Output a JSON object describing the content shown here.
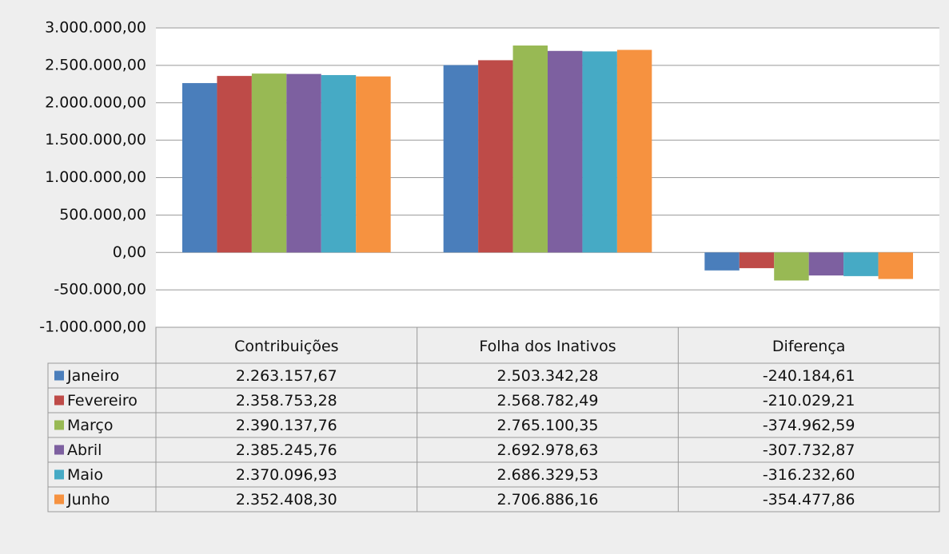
{
  "chart_data": {
    "type": "bar",
    "categories": [
      "Contribuições",
      "Folha dos Inativos",
      "Diferença"
    ],
    "series": [
      {
        "name": "Janeiro",
        "color": "#4a7ebb",
        "values": [
          2263157.67,
          2503342.28,
          -240184.61
        ],
        "value_labels": [
          "2.263.157,67",
          "2.503.342,28",
          "-240.184,61"
        ]
      },
      {
        "name": "Fevereiro",
        "color": "#be4b48",
        "values": [
          2358753.28,
          2568782.49,
          -210029.21
        ],
        "value_labels": [
          "2.358.753,28",
          "2.568.782,49",
          "-210.029,21"
        ]
      },
      {
        "name": "Março",
        "color": "#98b954",
        "values": [
          2390137.76,
          2765100.35,
          -374962.59
        ],
        "value_labels": [
          "2.390.137,76",
          "2.765.100,35",
          "-374.962,59"
        ]
      },
      {
        "name": "Abril",
        "color": "#7d60a0",
        "values": [
          2385245.76,
          2692978.63,
          -307732.87
        ],
        "value_labels": [
          "2.385.245,76",
          "2.692.978,63",
          "-307.732,87"
        ]
      },
      {
        "name": "Maio",
        "color": "#46aac5",
        "values": [
          2370096.93,
          2686329.53,
          -316232.6
        ],
        "value_labels": [
          "2.370.096,93",
          "2.686.329,53",
          "-316.232,60"
        ]
      },
      {
        "name": "Junho",
        "color": "#f69240",
        "values": [
          2352408.3,
          2706886.16,
          -354477.86
        ],
        "value_labels": [
          "2.352.408,30",
          "2.706.886,16",
          "-354.477,86"
        ]
      }
    ],
    "ylim": [
      -1000000,
      3000000
    ],
    "yticks": [
      {
        "value": -1000000,
        "label": "-1.000.000,00"
      },
      {
        "value": -500000,
        "label": "-500.000,00"
      },
      {
        "value": 0,
        "label": "0,00"
      },
      {
        "value": 500000,
        "label": "500.000,00"
      },
      {
        "value": 1000000,
        "label": "1.000.000,00"
      },
      {
        "value": 1500000,
        "label": "1.500.000,00"
      },
      {
        "value": 2000000,
        "label": "2.000.000,00"
      },
      {
        "value": 2500000,
        "label": "2.500.000,00"
      },
      {
        "value": 3000000,
        "label": "3.000.000,00"
      }
    ],
    "grid": true
  }
}
